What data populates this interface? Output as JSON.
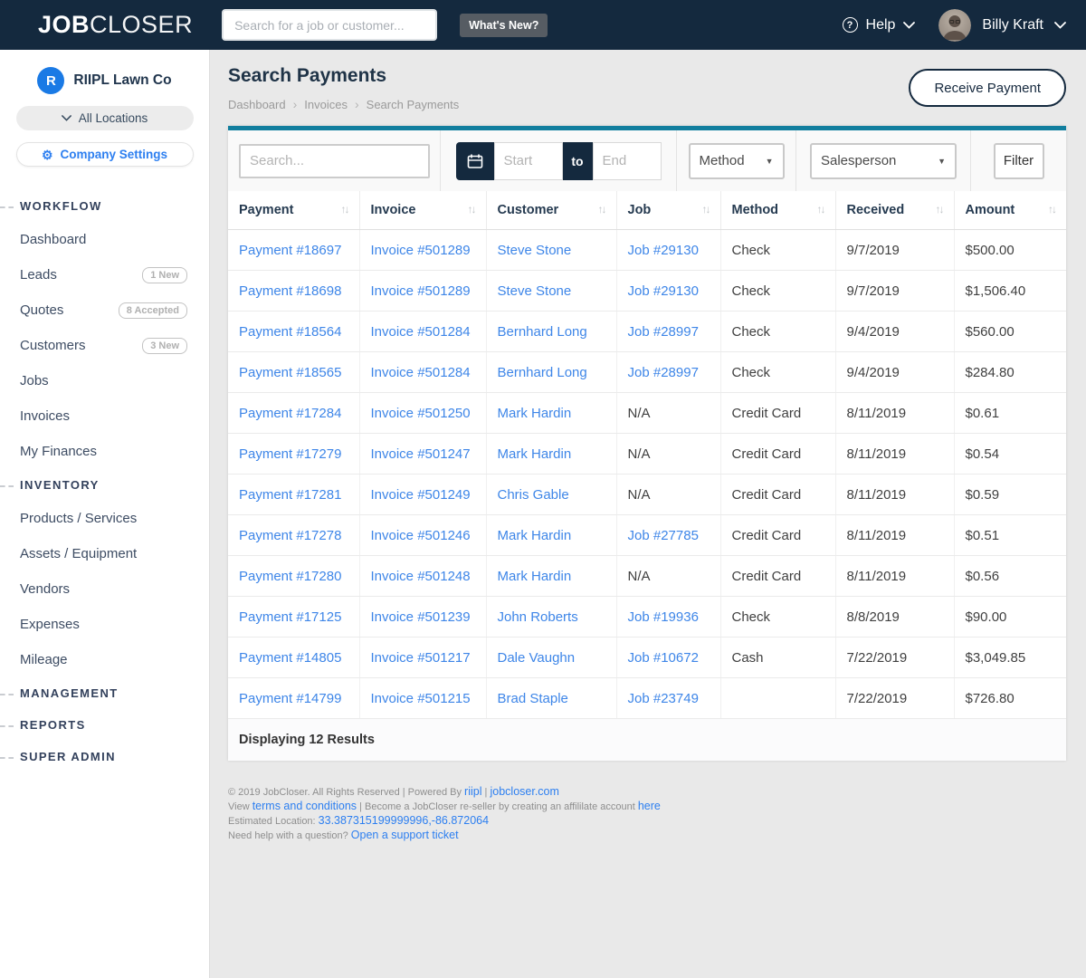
{
  "colors": {
    "navy": "#14293e",
    "teal": "#117e9e",
    "link_blue": "#3e86e8",
    "link_blue2": "#2d7ff0",
    "accent_blue": "#1a7ae5",
    "page_bg": "#e9e9e9"
  },
  "topbar": {
    "logo_bold": "JOB",
    "logo_light": "CLOSER",
    "search_placeholder": "Search for a job or customer...",
    "whats_new": "What's New?",
    "help": "Help",
    "user_name": "Billy Kraft"
  },
  "sidebar": {
    "company_initial": "R",
    "company": "RIIPL Lawn Co",
    "locations": "All Locations",
    "company_settings": "Company Settings",
    "sections": [
      {
        "label": "WORKFLOW",
        "items": [
          {
            "label": "Dashboard"
          },
          {
            "label": "Leads",
            "badge": "1 New"
          },
          {
            "label": "Quotes",
            "badge": "8 Accepted"
          },
          {
            "label": "Customers",
            "badge": "3 New"
          },
          {
            "label": "Jobs"
          },
          {
            "label": "Invoices"
          },
          {
            "label": "My Finances"
          }
        ]
      },
      {
        "label": "INVENTORY",
        "items": [
          {
            "label": "Products / Services"
          },
          {
            "label": "Assets / Equipment"
          },
          {
            "label": "Vendors"
          },
          {
            "label": "Expenses"
          },
          {
            "label": "Mileage"
          }
        ]
      },
      {
        "label": "MANAGEMENT",
        "items": []
      },
      {
        "label": "REPORTS",
        "items": []
      },
      {
        "label": "SUPER ADMIN",
        "items": []
      }
    ]
  },
  "page": {
    "title": "Search Payments",
    "breadcrumb": [
      "Dashboard",
      "Invoices",
      "Search Payments"
    ],
    "receive_payment": "Receive Payment"
  },
  "filters": {
    "search_placeholder": "Search...",
    "start_placeholder": "Start",
    "to_label": "to",
    "end_placeholder": "End",
    "method_label": "Method",
    "salesperson_label": "Salesperson",
    "filter_button": "Filter"
  },
  "table": {
    "columns": [
      "Payment",
      "Invoice",
      "Customer",
      "Job",
      "Method",
      "Received",
      "Amount"
    ],
    "rows": [
      [
        "Payment #18697",
        "Invoice #501289",
        "Steve Stone",
        "Job #29130",
        "Check",
        "9/7/2019",
        "$500.00"
      ],
      [
        "Payment #18698",
        "Invoice #501289",
        "Steve Stone",
        "Job #29130",
        "Check",
        "9/7/2019",
        "$1,506.40"
      ],
      [
        "Payment #18564",
        "Invoice #501284",
        "Bernhard Long",
        "Job #28997",
        "Check",
        "9/4/2019",
        "$560.00"
      ],
      [
        "Payment #18565",
        "Invoice #501284",
        "Bernhard Long",
        "Job #28997",
        "Check",
        "9/4/2019",
        "$284.80"
      ],
      [
        "Payment #17284",
        "Invoice #501250",
        "Mark Hardin",
        "N/A",
        "Credit Card",
        "8/11/2019",
        "$0.61"
      ],
      [
        "Payment #17279",
        "Invoice #501247",
        "Mark Hardin",
        "N/A",
        "Credit Card",
        "8/11/2019",
        "$0.54"
      ],
      [
        "Payment #17281",
        "Invoice #501249",
        "Chris Gable",
        "N/A",
        "Credit Card",
        "8/11/2019",
        "$0.59"
      ],
      [
        "Payment #17278",
        "Invoice #501246",
        "Mark Hardin",
        "Job #27785",
        "Credit Card",
        "8/11/2019",
        "$0.51"
      ],
      [
        "Payment #17280",
        "Invoice #501248",
        "Mark Hardin",
        "N/A",
        "Credit Card",
        "8/11/2019",
        "$0.56"
      ],
      [
        "Payment #17125",
        "Invoice #501239",
        "John Roberts",
        "Job #19936",
        "Check",
        "8/8/2019",
        "$90.00"
      ],
      [
        "Payment #14805",
        "Invoice #501217",
        "Dale Vaughn",
        "Job #10672",
        "Cash",
        "7/22/2019",
        "$3,049.85"
      ],
      [
        "Payment #14799",
        "Invoice #501215",
        "Brad Staple",
        "Job #23749",
        "",
        "7/22/2019",
        "$726.80"
      ]
    ],
    "results_text": "Displaying 12 Results"
  },
  "footer": {
    "lines": [
      [
        {
          "t": "© 2019 JobCloser. All Rights Reserved | Powered By "
        },
        {
          "t": "riipl",
          "link": true
        },
        {
          "t": " | "
        },
        {
          "t": "jobcloser.com",
          "link": true
        }
      ],
      [
        {
          "t": "View "
        },
        {
          "t": "terms and conditions",
          "link": true
        },
        {
          "t": " | Become a JobCloser re-seller by creating an affililate account "
        },
        {
          "t": "here",
          "link": true
        }
      ],
      [
        {
          "t": "Estimated Location: "
        },
        {
          "t": "33.387315199999996,-86.872064",
          "link": true
        }
      ],
      [
        {
          "t": "Need help with a question? "
        },
        {
          "t": "Open a support ticket",
          "link": true
        }
      ]
    ]
  }
}
